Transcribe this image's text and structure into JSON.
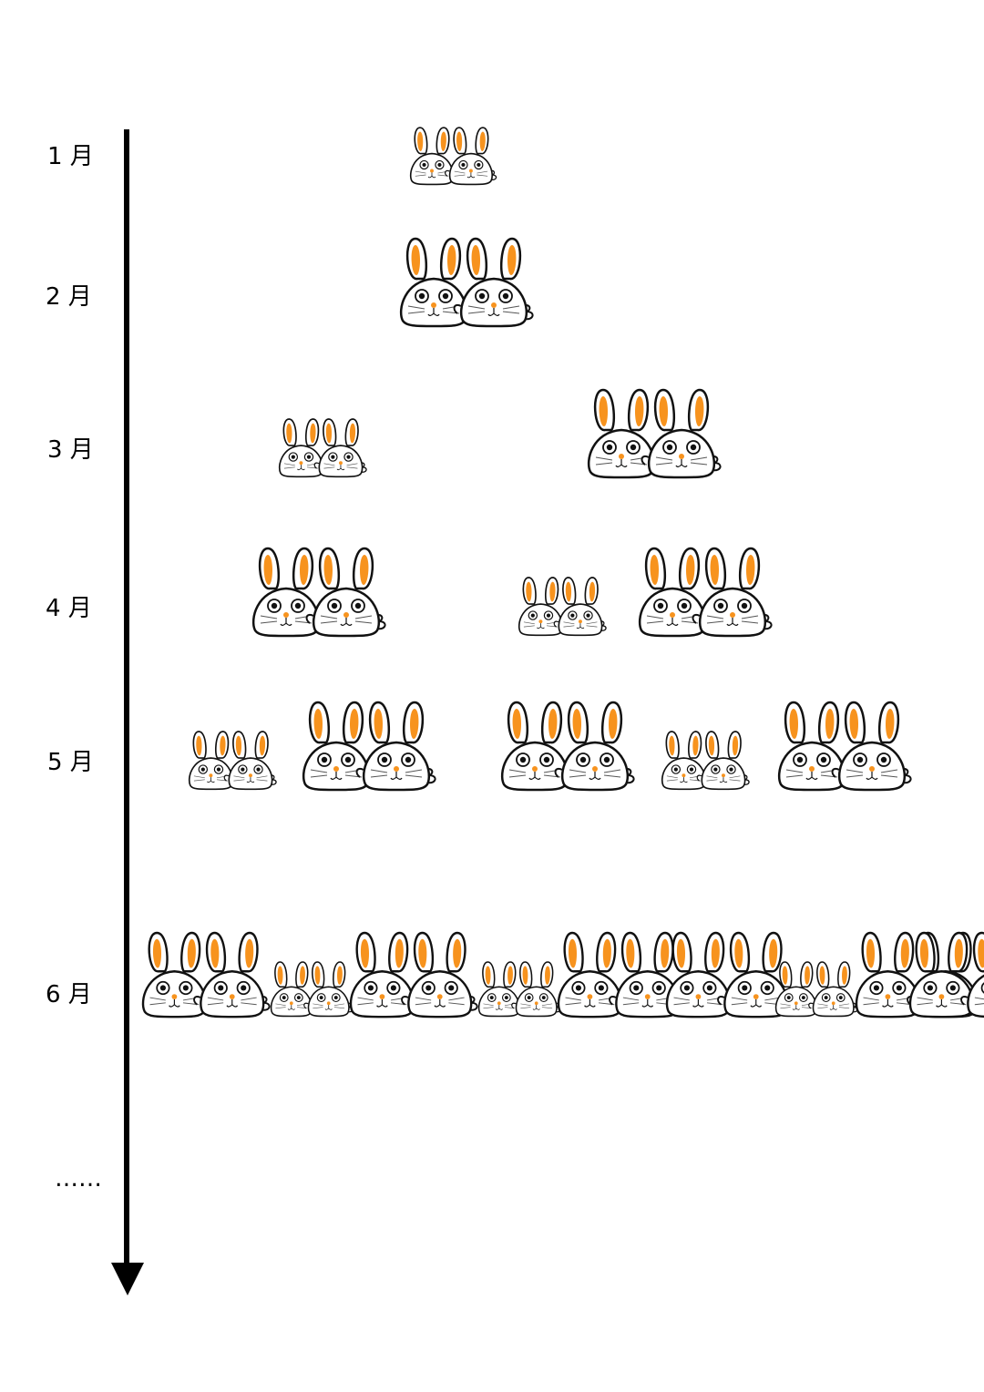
{
  "timeline": {
    "months": [
      {
        "label": "1 月",
        "pairs": [
          {
            "stage": "young"
          }
        ]
      },
      {
        "label": "2 月",
        "pairs": [
          {
            "stage": "adult"
          }
        ]
      },
      {
        "label": "3 月",
        "pairs": [
          {
            "stage": "young"
          },
          {
            "stage": "adult"
          }
        ]
      },
      {
        "label": "4 月",
        "pairs": [
          {
            "stage": "adult"
          },
          {
            "stage": "young"
          },
          {
            "stage": "adult"
          }
        ]
      },
      {
        "label": "5 月",
        "pairs": [
          {
            "stage": "young"
          },
          {
            "stage": "adult"
          },
          {
            "stage": "adult"
          },
          {
            "stage": "young"
          },
          {
            "stage": "adult"
          }
        ]
      },
      {
        "label": "6 月",
        "pairs": [
          {
            "stage": "adult"
          },
          {
            "stage": "young"
          },
          {
            "stage": "adult"
          },
          {
            "stage": "young"
          },
          {
            "stage": "adult"
          },
          {
            "stage": "adult"
          },
          {
            "stage": "adult"
          },
          {
            "stage": "young"
          },
          {
            "stage": "adult"
          }
        ]
      }
    ],
    "continuation": "……",
    "colors": {
      "ear_inner": "#F7931E",
      "outline": "#111111",
      "body": "#ffffff",
      "nose": "#F7931E",
      "axis": "#000000"
    }
  }
}
